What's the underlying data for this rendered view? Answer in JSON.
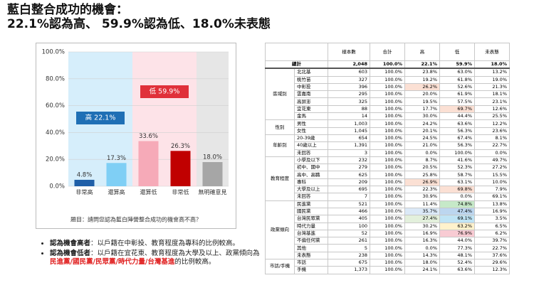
{
  "header": {
    "title_line1": "藍白整合成功的機會：",
    "title_line2": "22.1%認為高、 59.9%認為低、18.0%未表態"
  },
  "chart_data": {
    "type": "bar",
    "categories": [
      "非常高",
      "還算高",
      "還算低",
      "非常低",
      "無明確意見"
    ],
    "values": [
      4.8,
      17.3,
      33.6,
      26.3,
      18.0
    ],
    "value_labels": [
      "4.8%",
      "17.3%",
      "33.6%",
      "26.3%",
      "18.0%"
    ],
    "colors": [
      "#1f5fa8",
      "#7fcff5",
      "#f6aab8",
      "#c00000",
      "#a6a6a6"
    ],
    "band_colors": [
      "#d6eefb",
      "#d6eefb",
      "#fde3e8",
      "#fde3e8",
      "#e6e6e6"
    ],
    "ylim": [
      0,
      100
    ],
    "yticks": [
      {
        "value": 0,
        "label": "0.0%"
      },
      {
        "value": 20,
        "label": "20.0%"
      },
      {
        "value": 40,
        "label": "40.0%"
      },
      {
        "value": 60,
        "label": "60.0%"
      },
      {
        "value": 80,
        "label": "80.0%"
      },
      {
        "value": 100,
        "label": "100.0%"
      }
    ],
    "grid": true,
    "group_labels": [
      {
        "text": "高 22.1%",
        "color": "#1f6fb5"
      },
      {
        "text": "低 59.9%",
        "color": "#e0303a"
      }
    ],
    "note": "題目：請問您認為藍白陣營整合成功的機會高不高？"
  },
  "bullets": [
    [
      {
        "text": "認為機會高者",
        "style": "bold"
      },
      {
        "text": "：以戶籍在中彰投、教育程度為專科的比例較高。",
        "style": "plain"
      }
    ],
    [
      {
        "text": "認為機會低者",
        "style": "bold"
      },
      {
        "text": "：以戶籍在宜花東、教育程度為大學及以上、政黨傾向為",
        "style": "plain"
      },
      {
        "text": "民進黨/國民黨/民眾黨/時代力量/台灣基進",
        "style": "red"
      },
      {
        "text": "的比例較高。",
        "style": "plain"
      }
    ]
  ],
  "table": {
    "columns": [
      "樣本數",
      "合計",
      "高",
      "低",
      "未表態"
    ],
    "total": {
      "label": "總計",
      "cells": [
        "2,048",
        "100.0%",
        "22.1%",
        "59.9%",
        "18.0%"
      ]
    },
    "groups": [
      {
        "name": "區域別",
        "rows": [
          {
            "label": "北北基",
            "cells": [
              "603",
              "100.0%",
              "23.8%",
              "63.0%",
              "13.2%"
            ]
          },
          {
            "label": "桃竹苗",
            "cells": [
              "327",
              "100.0%",
              "19.2%",
              "61.8%",
              "19.0%"
            ]
          },
          {
            "label": "中彰投",
            "cells": [
              "396",
              "100.0%",
              "26.2%",
              "52.6%",
              "21.3%"
            ],
            "shade": [
              null,
              null,
              "#fbe0d4",
              null,
              null
            ]
          },
          {
            "label": "雲嘉南",
            "cells": [
              "295",
              "100.0%",
              "20.0%",
              "61.9%",
              "18.1%"
            ]
          },
          {
            "label": "高屏澎",
            "cells": [
              "325",
              "100.0%",
              "19.5%",
              "57.5%",
              "23.1%"
            ]
          },
          {
            "label": "宜花東",
            "cells": [
              "88",
              "100.0%",
              "17.7%",
              "69.7%",
              "12.6%"
            ],
            "shade": [
              null,
              null,
              null,
              "#fbe0d4",
              null
            ]
          },
          {
            "label": "金馬",
            "cells": [
              "14",
              "100.0%",
              "30.0%",
              "44.4%",
              "25.5%"
            ]
          }
        ]
      },
      {
        "name": "性別",
        "rows": [
          {
            "label": "男性",
            "cells": [
              "1,003",
              "100.0%",
              "24.2%",
              "63.6%",
              "12.2%"
            ]
          },
          {
            "label": "女性",
            "cells": [
              "1,045",
              "100.0%",
              "20.1%",
              "56.3%",
              "23.6%"
            ]
          }
        ]
      },
      {
        "name": "年齡別",
        "rows": [
          {
            "label": "20-39歲",
            "cells": [
              "654",
              "100.0%",
              "24.5%",
              "67.4%",
              "8.1%"
            ]
          },
          {
            "label": "40歲以上",
            "cells": [
              "1,391",
              "100.0%",
              "21.0%",
              "56.3%",
              "22.7%"
            ]
          },
          {
            "label": "未回答",
            "cells": [
              "3",
              "100.0%",
              "0.0%",
              "100.0%",
              "0.0%"
            ]
          }
        ]
      },
      {
        "name": "教育程度",
        "rows": [
          {
            "label": "小學及以下",
            "cells": [
              "232",
              "100.0%",
              "8.7%",
              "41.6%",
              "49.7%"
            ]
          },
          {
            "label": "初中、國中",
            "cells": [
              "279",
              "100.0%",
              "20.5%",
              "52.3%",
              "27.2%"
            ]
          },
          {
            "label": "高中、高職",
            "cells": [
              "625",
              "100.0%",
              "25.8%",
              "58.7%",
              "15.5%"
            ]
          },
          {
            "label": "專科",
            "cells": [
              "209",
              "100.0%",
              "26.9%",
              "63.1%",
              "10.0%"
            ],
            "shade": [
              null,
              null,
              "#fbe0d4",
              null,
              null
            ]
          },
          {
            "label": "大學及以上",
            "cells": [
              "695",
              "100.0%",
              "22.3%",
              "69.8%",
              "7.9%"
            ],
            "shade": [
              null,
              null,
              null,
              "#fbe0d4",
              null
            ]
          },
          {
            "label": "未回答",
            "cells": [
              "7",
              "100.0%",
              "30.9%",
              "0.0%",
              "69.1%"
            ]
          }
        ]
      },
      {
        "name": "政黨傾向",
        "rows": [
          {
            "label": "民進黨",
            "cells": [
              "521",
              "100.0%",
              "11.4%",
              "74.8%",
              "13.8%"
            ],
            "shade": [
              null,
              null,
              null,
              "#c6e9c8",
              null
            ]
          },
          {
            "label": "國民黨",
            "cells": [
              "466",
              "100.0%",
              "35.7%",
              "47.4%",
              "16.9%"
            ],
            "shade": [
              null,
              null,
              "#dbe9f7",
              "#bcd6ef",
              null
            ]
          },
          {
            "label": "台灣民眾黨",
            "cells": [
              "405",
              "100.0%",
              "27.4%",
              "69.1%",
              "3.5%"
            ],
            "shade": [
              null,
              null,
              "#e3f0dc",
              "#bfe4f5",
              null
            ]
          },
          {
            "label": "時代力量",
            "cells": [
              "100",
              "100.0%",
              "30.2%",
              "63.2%",
              "6.5%"
            ],
            "shade": [
              null,
              null,
              null,
              "#fff2cc",
              null
            ]
          },
          {
            "label": "台灣基進",
            "cells": [
              "52",
              "100.0%",
              "16.9%",
              "76.9%",
              "6.2%"
            ],
            "shade": [
              null,
              null,
              null,
              "#f8cbd3",
              null
            ]
          },
          {
            "label": "不偏任何黨",
            "cells": [
              "261",
              "100.0%",
              "16.3%",
              "44.0%",
              "39.7%"
            ]
          },
          {
            "label": "其他",
            "cells": [
              "5",
              "100.0%",
              "0.0%",
              "77.3%",
              "22.7%"
            ]
          },
          {
            "label": "未表態",
            "cells": [
              "238",
              "100.0%",
              "14.3%",
              "48.1%",
              "37.6%"
            ]
          }
        ]
      },
      {
        "name": "市話/手機",
        "rows": [
          {
            "label": "市話",
            "cells": [
              "675",
              "100.0%",
              "18.0%",
              "52.4%",
              "29.6%"
            ]
          },
          {
            "label": "手機",
            "cells": [
              "1,373",
              "100.0%",
              "24.1%",
              "63.6%",
              "12.3%"
            ]
          }
        ]
      }
    ]
  }
}
